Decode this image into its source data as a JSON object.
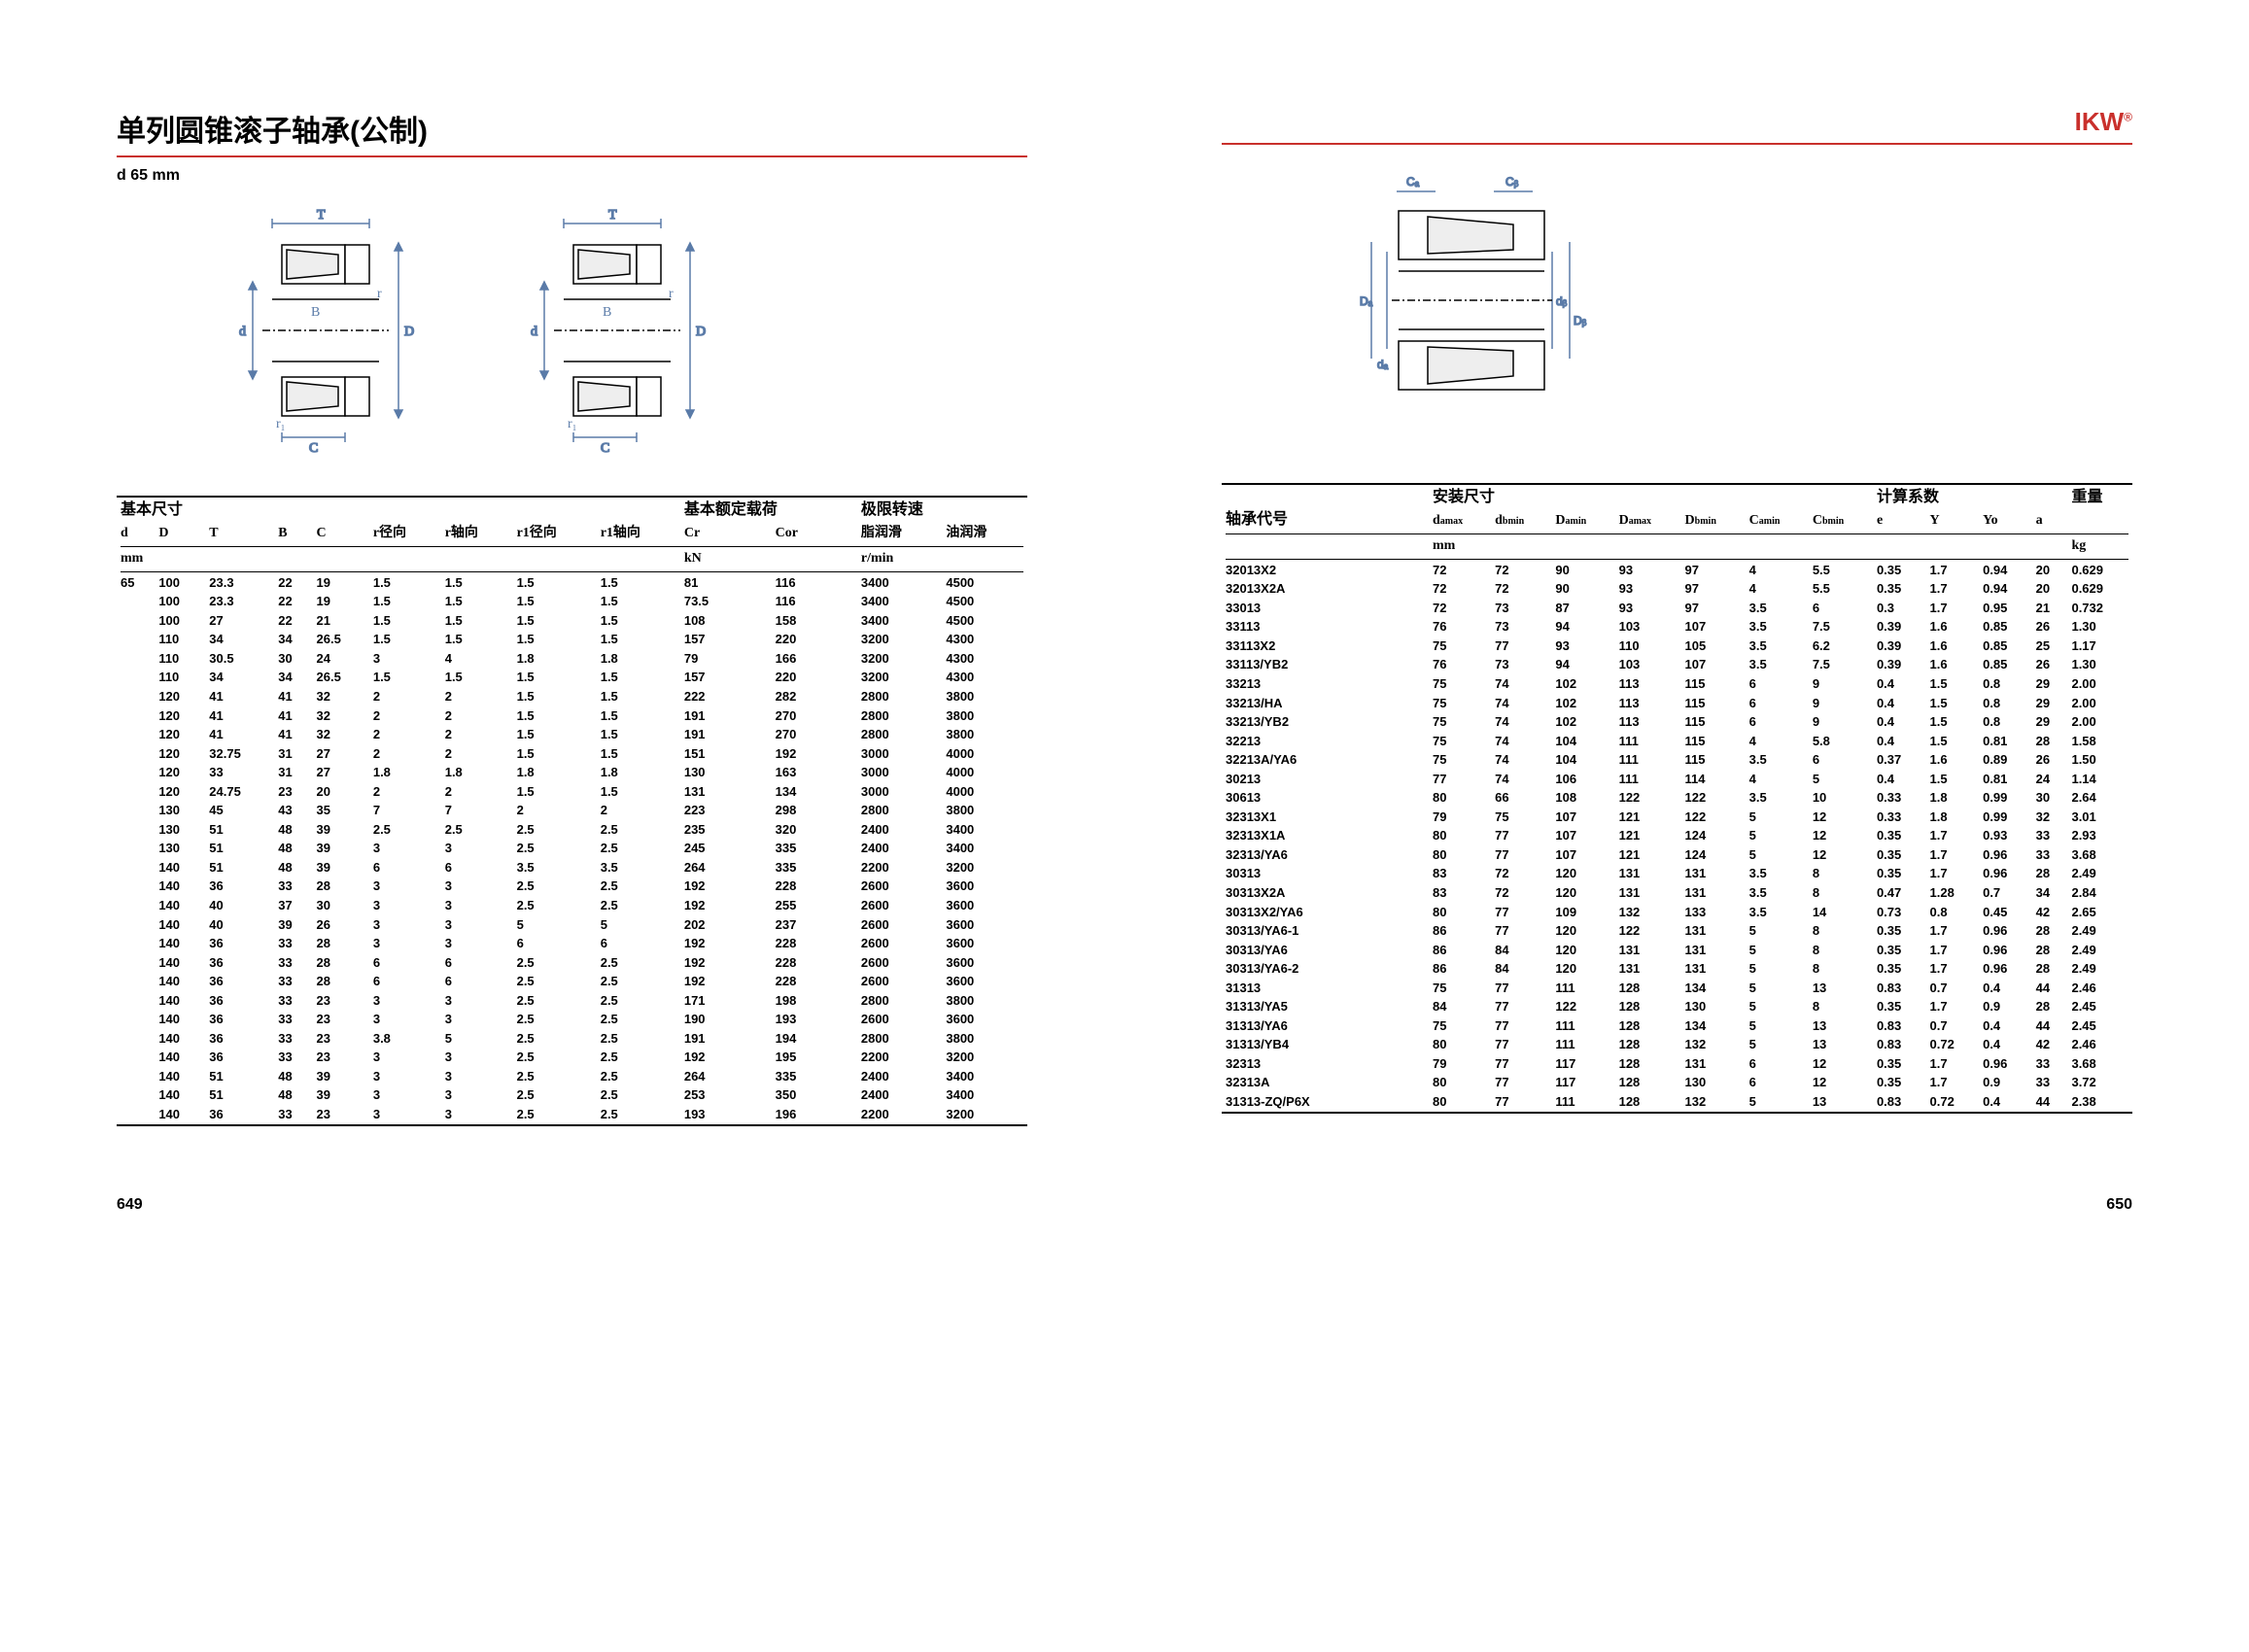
{
  "title": "单列圆锥滚子轴承(公制)",
  "subtitle": "d 65 mm",
  "brand": "IKW",
  "page_left": "649",
  "page_right": "650",
  "colors": {
    "accent": "#c9302c",
    "text": "#000000",
    "bg": "#ffffff"
  },
  "left_table": {
    "section_labels": [
      "基本尺寸",
      "基本额定载荷",
      "极限转速"
    ],
    "headers": [
      "d",
      "D",
      "T",
      "B",
      "C",
      "r径向",
      "r轴向",
      "r1径向",
      "r1轴向",
      "Cr",
      "Cor",
      "脂润滑",
      "油润滑"
    ],
    "unit_mm": "mm",
    "unit_kn": "kN",
    "unit_rmin": "r/min",
    "d_value": "65",
    "groups": [
      [
        [
          "100",
          "23.3",
          "22",
          "19",
          "1.5",
          "1.5",
          "1.5",
          "1.5",
          "81",
          "116",
          "3400",
          "4500"
        ],
        [
          "100",
          "23.3",
          "22",
          "19",
          "1.5",
          "1.5",
          "1.5",
          "1.5",
          "73.5",
          "116",
          "3400",
          "4500"
        ],
        [
          "100",
          "27",
          "22",
          "21",
          "1.5",
          "1.5",
          "1.5",
          "1.5",
          "108",
          "158",
          "3400",
          "4500"
        ]
      ],
      [
        [
          "110",
          "34",
          "34",
          "26.5",
          "1.5",
          "1.5",
          "1.5",
          "1.5",
          "157",
          "220",
          "3200",
          "4300"
        ],
        [
          "110",
          "30.5",
          "30",
          "24",
          "3",
          "4",
          "1.8",
          "1.8",
          "79",
          "166",
          "3200",
          "4300"
        ],
        [
          "110",
          "34",
          "34",
          "26.5",
          "1.5",
          "1.5",
          "1.5",
          "1.5",
          "157",
          "220",
          "3200",
          "4300"
        ]
      ],
      [
        [
          "120",
          "41",
          "41",
          "32",
          "2",
          "2",
          "1.5",
          "1.5",
          "222",
          "282",
          "2800",
          "3800"
        ],
        [
          "120",
          "41",
          "41",
          "32",
          "2",
          "2",
          "1.5",
          "1.5",
          "191",
          "270",
          "2800",
          "3800"
        ],
        [
          "120",
          "41",
          "41",
          "32",
          "2",
          "2",
          "1.5",
          "1.5",
          "191",
          "270",
          "2800",
          "3800"
        ],
        [
          "120",
          "32.75",
          "31",
          "27",
          "2",
          "2",
          "1.5",
          "1.5",
          "151",
          "192",
          "3000",
          "4000"
        ],
        [
          "120",
          "33",
          "31",
          "27",
          "1.8",
          "1.8",
          "1.8",
          "1.8",
          "130",
          "163",
          "3000",
          "4000"
        ],
        [
          "120",
          "24.75",
          "23",
          "20",
          "2",
          "2",
          "1.5",
          "1.5",
          "131",
          "134",
          "3000",
          "4000"
        ]
      ],
      [
        [
          "130",
          "45",
          "43",
          "35",
          "7",
          "7",
          "2",
          "2",
          "223",
          "298",
          "2800",
          "3800"
        ],
        [
          "130",
          "51",
          "48",
          "39",
          "2.5",
          "2.5",
          "2.5",
          "2.5",
          "235",
          "320",
          "2400",
          "3400"
        ],
        [
          "130",
          "51",
          "48",
          "39",
          "3",
          "3",
          "2.5",
          "2.5",
          "245",
          "335",
          "2400",
          "3400"
        ]
      ],
      [
        [
          "140",
          "51",
          "48",
          "39",
          "6",
          "6",
          "3.5",
          "3.5",
          "264",
          "335",
          "2200",
          "3200"
        ],
        [
          "140",
          "36",
          "33",
          "28",
          "3",
          "3",
          "2.5",
          "2.5",
          "192",
          "228",
          "2600",
          "3600"
        ],
        [
          "140",
          "40",
          "37",
          "30",
          "3",
          "3",
          "2.5",
          "2.5",
          "192",
          "255",
          "2600",
          "3600"
        ]
      ],
      [
        [
          "140",
          "40",
          "39",
          "26",
          "3",
          "3",
          "5",
          "5",
          "202",
          "237",
          "2600",
          "3600"
        ],
        [
          "140",
          "36",
          "33",
          "28",
          "3",
          "3",
          "6",
          "6",
          "192",
          "228",
          "2600",
          "3600"
        ],
        [
          "140",
          "36",
          "33",
          "28",
          "6",
          "6",
          "2.5",
          "2.5",
          "192",
          "228",
          "2600",
          "3600"
        ]
      ],
      [
        [
          "140",
          "36",
          "33",
          "28",
          "6",
          "6",
          "2.5",
          "2.5",
          "192",
          "228",
          "2600",
          "3600"
        ],
        [
          "140",
          "36",
          "33",
          "23",
          "3",
          "3",
          "2.5",
          "2.5",
          "171",
          "198",
          "2800",
          "3800"
        ],
        [
          "140",
          "36",
          "33",
          "23",
          "3",
          "3",
          "2.5",
          "2.5",
          "190",
          "193",
          "2600",
          "3600"
        ],
        [
          "140",
          "36",
          "33",
          "23",
          "3.8",
          "5",
          "2.5",
          "2.5",
          "191",
          "194",
          "2800",
          "3800"
        ]
      ],
      [
        [
          "140",
          "36",
          "33",
          "23",
          "3",
          "3",
          "2.5",
          "2.5",
          "192",
          "195",
          "2200",
          "3200"
        ],
        [
          "140",
          "51",
          "48",
          "39",
          "3",
          "3",
          "2.5",
          "2.5",
          "264",
          "335",
          "2400",
          "3400"
        ],
        [
          "140",
          "51",
          "48",
          "39",
          "3",
          "3",
          "2.5",
          "2.5",
          "253",
          "350",
          "2400",
          "3400"
        ],
        [
          "140",
          "36",
          "33",
          "23",
          "3",
          "3",
          "2.5",
          "2.5",
          "193",
          "196",
          "2200",
          "3200"
        ]
      ]
    ]
  },
  "right_table": {
    "section_labels": [
      "轴承代号",
      "安装尺寸",
      "计算系数",
      "重量"
    ],
    "headers": [
      "",
      "damax",
      "dbmin",
      "Damin",
      "Damax",
      "Dbmin",
      "Camin",
      "Cbmin",
      "e",
      "Y",
      "Yo",
      "a",
      ""
    ],
    "unit_mm": "mm",
    "unit_kg": "kg",
    "groups": [
      [
        [
          "32013X2",
          "72",
          "72",
          "90",
          "93",
          "97",
          "4",
          "5.5",
          "0.35",
          "1.7",
          "0.94",
          "20",
          "0.629"
        ],
        [
          "32013X2A",
          "72",
          "72",
          "90",
          "93",
          "97",
          "4",
          "5.5",
          "0.35",
          "1.7",
          "0.94",
          "20",
          "0.629"
        ],
        [
          "33013",
          "72",
          "73",
          "87",
          "93",
          "97",
          "3.5",
          "6",
          "0.3",
          "1.7",
          "0.95",
          "21",
          "0.732"
        ]
      ],
      [
        [
          "33113",
          "76",
          "73",
          "94",
          "103",
          "107",
          "3.5",
          "7.5",
          "0.39",
          "1.6",
          "0.85",
          "26",
          "1.30"
        ],
        [
          "33113X2",
          "75",
          "77",
          "93",
          "110",
          "105",
          "3.5",
          "6.2",
          "0.39",
          "1.6",
          "0.85",
          "25",
          "1.17"
        ],
        [
          "33113/YB2",
          "76",
          "73",
          "94",
          "103",
          "107",
          "3.5",
          "7.5",
          "0.39",
          "1.6",
          "0.85",
          "26",
          "1.30"
        ]
      ],
      [
        [
          "33213",
          "75",
          "74",
          "102",
          "113",
          "115",
          "6",
          "9",
          "0.4",
          "1.5",
          "0.8",
          "29",
          "2.00"
        ],
        [
          "33213/HA",
          "75",
          "74",
          "102",
          "113",
          "115",
          "6",
          "9",
          "0.4",
          "1.5",
          "0.8",
          "29",
          "2.00"
        ],
        [
          "33213/YB2",
          "75",
          "74",
          "102",
          "113",
          "115",
          "6",
          "9",
          "0.4",
          "1.5",
          "0.8",
          "29",
          "2.00"
        ],
        [
          "32213",
          "75",
          "74",
          "104",
          "111",
          "115",
          "4",
          "5.8",
          "0.4",
          "1.5",
          "0.81",
          "28",
          "1.58"
        ],
        [
          "32213A/YA6",
          "75",
          "74",
          "104",
          "111",
          "115",
          "3.5",
          "6",
          "0.37",
          "1.6",
          "0.89",
          "26",
          "1.50"
        ],
        [
          "30213",
          "77",
          "74",
          "106",
          "111",
          "114",
          "4",
          "5",
          "0.4",
          "1.5",
          "0.81",
          "24",
          "1.14"
        ]
      ],
      [
        [
          "30613",
          "80",
          "66",
          "108",
          "122",
          "122",
          "3.5",
          "10",
          "0.33",
          "1.8",
          "0.99",
          "30",
          "2.64"
        ],
        [
          "32313X1",
          "79",
          "75",
          "107",
          "121",
          "122",
          "5",
          "12",
          "0.33",
          "1.8",
          "0.99",
          "32",
          "3.01"
        ],
        [
          "32313X1A",
          "80",
          "77",
          "107",
          "121",
          "124",
          "5",
          "12",
          "0.35",
          "1.7",
          "0.93",
          "33",
          "2.93"
        ]
      ],
      [
        [
          "32313/YA6",
          "80",
          "77",
          "107",
          "121",
          "124",
          "5",
          "12",
          "0.35",
          "1.7",
          "0.96",
          "33",
          "3.68"
        ],
        [
          "30313",
          "83",
          "72",
          "120",
          "131",
          "131",
          "3.5",
          "8",
          "0.35",
          "1.7",
          "0.96",
          "28",
          "2.49"
        ],
        [
          "30313X2A",
          "83",
          "72",
          "120",
          "131",
          "131",
          "3.5",
          "8",
          "0.47",
          "1.28",
          "0.7",
          "34",
          "2.84"
        ]
      ],
      [
        [
          "30313X2/YA6",
          "80",
          "77",
          "109",
          "132",
          "133",
          "3.5",
          "14",
          "0.73",
          "0.8",
          "0.45",
          "42",
          "2.65"
        ],
        [
          "30313/YA6-1",
          "86",
          "77",
          "120",
          "122",
          "131",
          "5",
          "8",
          "0.35",
          "1.7",
          "0.96",
          "28",
          "2.49"
        ],
        [
          "30313/YA6",
          "86",
          "84",
          "120",
          "131",
          "131",
          "5",
          "8",
          "0.35",
          "1.7",
          "0.96",
          "28",
          "2.49"
        ]
      ],
      [
        [
          "30313/YA6-2",
          "86",
          "84",
          "120",
          "131",
          "131",
          "5",
          "8",
          "0.35",
          "1.7",
          "0.96",
          "28",
          "2.49"
        ],
        [
          "31313",
          "75",
          "77",
          "111",
          "128",
          "134",
          "5",
          "13",
          "0.83",
          "0.7",
          "0.4",
          "44",
          "2.46"
        ],
        [
          "31313/YA5",
          "84",
          "77",
          "122",
          "128",
          "130",
          "5",
          "8",
          "0.35",
          "1.7",
          "0.9",
          "28",
          "2.45"
        ],
        [
          "31313/YA6",
          "75",
          "77",
          "111",
          "128",
          "134",
          "5",
          "13",
          "0.83",
          "0.7",
          "0.4",
          "44",
          "2.45"
        ]
      ],
      [
        [
          "31313/YB4",
          "80",
          "77",
          "111",
          "128",
          "132",
          "5",
          "13",
          "0.83",
          "0.72",
          "0.4",
          "42",
          "2.46"
        ],
        [
          "32313",
          "79",
          "77",
          "117",
          "128",
          "131",
          "6",
          "12",
          "0.35",
          "1.7",
          "0.96",
          "33",
          "3.68"
        ],
        [
          "32313A",
          "80",
          "77",
          "117",
          "128",
          "130",
          "6",
          "12",
          "0.35",
          "1.7",
          "0.9",
          "33",
          "3.72"
        ],
        [
          "31313-ZQ/P6X",
          "80",
          "77",
          "111",
          "128",
          "132",
          "5",
          "13",
          "0.83",
          "0.72",
          "0.4",
          "44",
          "2.38"
        ]
      ]
    ]
  }
}
